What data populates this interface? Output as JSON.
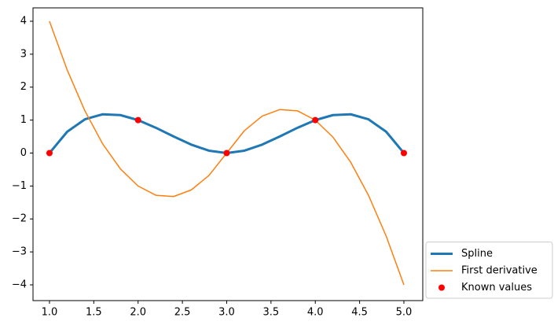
{
  "chart_data": {
    "type": "line",
    "x": [
      1.0,
      1.2,
      1.4,
      1.6,
      1.8,
      2.0,
      2.2,
      2.4,
      2.6,
      2.8,
      3.0,
      3.2,
      3.4,
      3.6,
      3.8,
      4.0,
      4.2,
      4.4,
      4.6,
      4.8,
      5.0
    ],
    "series": [
      {
        "name": "Spline",
        "color": "#1f77b4",
        "linewidth": 3,
        "values": [
          0,
          0.648,
          1.024,
          1.176,
          1.152,
          1,
          0.768,
          0.504,
          0.256,
          0.072,
          0,
          0.072,
          0.256,
          0.504,
          0.768,
          1,
          1.152,
          1.176,
          1.024,
          0.648,
          0
        ]
      },
      {
        "name": "First derivative",
        "color": "#ff7f0e",
        "linewidth": 1.5,
        "values": [
          4,
          2.52,
          1.28,
          0.28,
          -0.48,
          -1,
          -1.28,
          -1.32,
          -1.12,
          -0.68,
          0,
          0.68,
          1.12,
          1.32,
          1.28,
          1,
          0.48,
          -0.28,
          -1.28,
          -2.52,
          -4
        ]
      },
      {
        "name": "Known values",
        "color": "#ff0000",
        "marker": "o",
        "x": [
          1,
          2,
          3,
          4,
          5
        ],
        "values": [
          0,
          1,
          0,
          1,
          0
        ]
      }
    ],
    "xlim": [
      0.814,
      5.213
    ],
    "ylim": [
      -4.478,
      4.406
    ],
    "xticks": [
      {
        "value": 1,
        "label": "1.0"
      },
      {
        "value": 1.5,
        "label": "1.5"
      },
      {
        "value": 2,
        "label": "2.0"
      },
      {
        "value": 2.5,
        "label": "2.5"
      },
      {
        "value": 3,
        "label": "3.0"
      },
      {
        "value": 3.5,
        "label": "3.5"
      },
      {
        "value": 4,
        "label": "4.0"
      },
      {
        "value": 4.5,
        "label": "4.5"
      },
      {
        "value": 5,
        "label": "5.0"
      }
    ],
    "yticks": [
      {
        "value": -4,
        "label": "−4"
      },
      {
        "value": -3,
        "label": "−3"
      },
      {
        "value": -2,
        "label": "−2"
      },
      {
        "value": -1,
        "label": "−1"
      },
      0,
      1,
      2,
      3,
      4
    ],
    "legend": "lower right outside"
  }
}
